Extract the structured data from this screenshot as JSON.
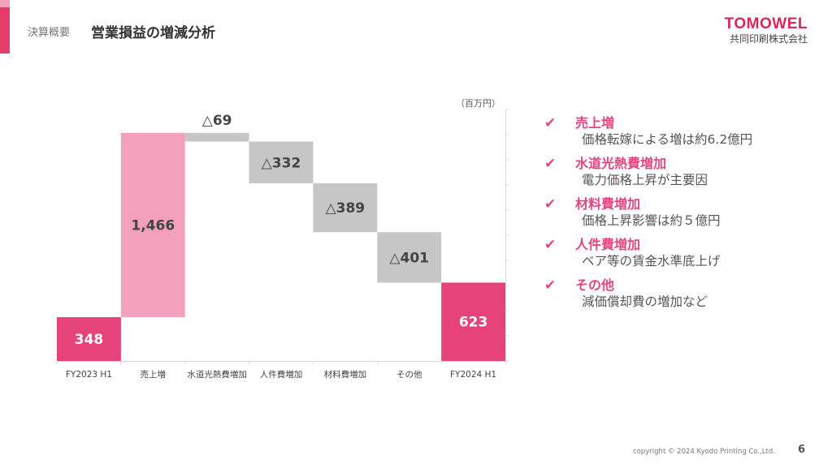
{
  "header": {
    "section": "決算概要",
    "title": "営業損益の増減分析"
  },
  "logo": {
    "name": "TOMOWEL",
    "company": "共同印刷株式会社"
  },
  "colors": {
    "accent": "#e33d6c",
    "total": "#e5437a",
    "increase": "#f2a0bb",
    "decrease": "#c6c6c6"
  },
  "chart_data": {
    "type": "bar",
    "subtype": "waterfall",
    "unit_label": "（百万円）",
    "categories": [
      "FY2023 H1",
      "売上増",
      "水道光熱費増加",
      "人件費増加",
      "材料費増加",
      "その他",
      "FY2024 H1"
    ],
    "steps": [
      {
        "kind": "total",
        "value": 348,
        "label": "348"
      },
      {
        "kind": "increase",
        "value": 1466,
        "label": "1,466"
      },
      {
        "kind": "decrease",
        "value": -69,
        "label": "△69"
      },
      {
        "kind": "decrease",
        "value": -332,
        "label": "△332"
      },
      {
        "kind": "decrease",
        "value": -389,
        "label": "△389"
      },
      {
        "kind": "decrease",
        "value": -401,
        "label": "△401"
      },
      {
        "kind": "total",
        "value": 623,
        "label": "623"
      }
    ],
    "ylim": [
      0,
      2000
    ],
    "ytick_step": 200,
    "ytick_labels_shown": false,
    "grid": false,
    "legend": "none"
  },
  "notes": [
    {
      "head": "売上増",
      "body": "価格転嫁による増は約6.2億円"
    },
    {
      "head": "水道光熱費増加",
      "body": "電力価格上昇が主要因"
    },
    {
      "head": "材料費増加",
      "body": "価格上昇影響は約５億円"
    },
    {
      "head": "人件費増加",
      "body": "ベア等の賃金水準底上げ"
    },
    {
      "head": "その他",
      "body": "減価償却費の増加など"
    }
  ],
  "check_icon": "✔",
  "footer": {
    "copyright": "copyright © 2024 Kyodo Printing Co.,Ltd.",
    "page": "6"
  }
}
